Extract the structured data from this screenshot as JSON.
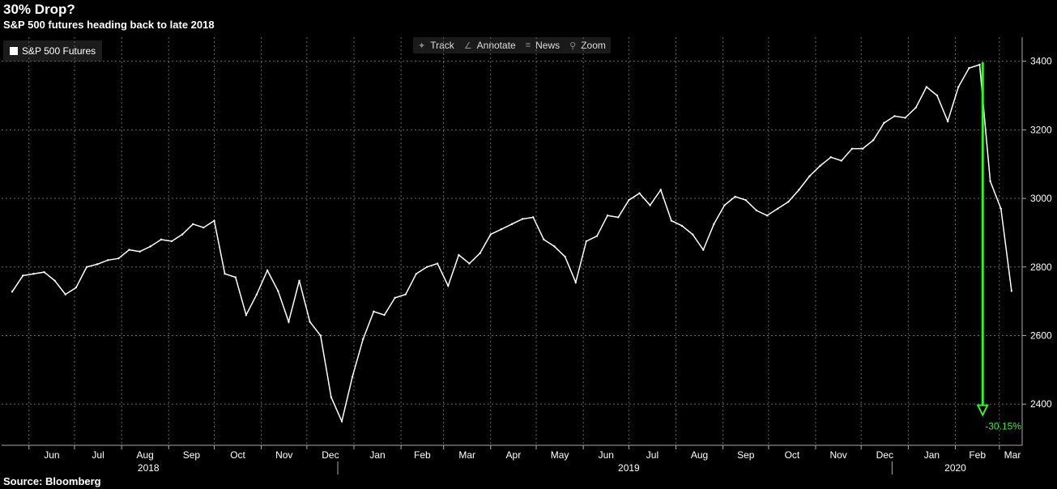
{
  "header": {
    "title": "30% Drop?",
    "subtitle": "S&P 500 futures heading back to late 2018"
  },
  "footer": {
    "source": "Source: Bloomberg"
  },
  "toolbar": {
    "items": [
      {
        "label": "Track",
        "icon": "crosshair-icon"
      },
      {
        "label": "Annotate",
        "icon": "pencil-icon"
      },
      {
        "label": "News",
        "icon": "news-icon"
      },
      {
        "label": "Zoom",
        "icon": "magnifier-icon"
      }
    ]
  },
  "colors": {
    "background": "#000000",
    "series": "#ffffff",
    "annotation": "#33ee33",
    "grid": "#666666"
  },
  "chart_data": {
    "type": "line",
    "title": "30% Drop?",
    "subtitle": "S&P 500 futures heading back to late 2018",
    "series": [
      {
        "name": "S&P 500 Futures",
        "points": [
          [
            "2018-05-21",
            2728
          ],
          [
            "2018-05-28",
            2775
          ],
          [
            "2018-06-04",
            2780
          ],
          [
            "2018-06-11",
            2785
          ],
          [
            "2018-06-18",
            2760
          ],
          [
            "2018-06-25",
            2720
          ],
          [
            "2018-07-02",
            2740
          ],
          [
            "2018-07-09",
            2800
          ],
          [
            "2018-07-16",
            2808
          ],
          [
            "2018-07-23",
            2820
          ],
          [
            "2018-07-30",
            2825
          ],
          [
            "2018-08-06",
            2850
          ],
          [
            "2018-08-13",
            2845
          ],
          [
            "2018-08-20",
            2860
          ],
          [
            "2018-08-27",
            2880
          ],
          [
            "2018-09-03",
            2875
          ],
          [
            "2018-09-10",
            2895
          ],
          [
            "2018-09-17",
            2925
          ],
          [
            "2018-09-24",
            2915
          ],
          [
            "2018-10-01",
            2935
          ],
          [
            "2018-10-08",
            2780
          ],
          [
            "2018-10-15",
            2770
          ],
          [
            "2018-10-22",
            2660
          ],
          [
            "2018-10-29",
            2720
          ],
          [
            "2018-11-05",
            2790
          ],
          [
            "2018-11-12",
            2730
          ],
          [
            "2018-11-19",
            2640
          ],
          [
            "2018-11-26",
            2760
          ],
          [
            "2018-12-03",
            2640
          ],
          [
            "2018-12-10",
            2600
          ],
          [
            "2018-12-17",
            2420
          ],
          [
            "2018-12-24",
            2350
          ],
          [
            "2018-12-31",
            2480
          ],
          [
            "2019-01-07",
            2590
          ],
          [
            "2019-01-14",
            2670
          ],
          [
            "2019-01-21",
            2660
          ],
          [
            "2019-01-28",
            2710
          ],
          [
            "2019-02-04",
            2720
          ],
          [
            "2019-02-11",
            2780
          ],
          [
            "2019-02-18",
            2800
          ],
          [
            "2019-02-25",
            2810
          ],
          [
            "2019-03-04",
            2745
          ],
          [
            "2019-03-11",
            2835
          ],
          [
            "2019-03-18",
            2810
          ],
          [
            "2019-03-25",
            2840
          ],
          [
            "2019-04-01",
            2895
          ],
          [
            "2019-04-08",
            2910
          ],
          [
            "2019-04-15",
            2925
          ],
          [
            "2019-04-22",
            2940
          ],
          [
            "2019-04-29",
            2945
          ],
          [
            "2019-05-06",
            2880
          ],
          [
            "2019-05-13",
            2860
          ],
          [
            "2019-05-20",
            2830
          ],
          [
            "2019-05-27",
            2755
          ],
          [
            "2019-06-03",
            2875
          ],
          [
            "2019-06-10",
            2890
          ],
          [
            "2019-06-17",
            2950
          ],
          [
            "2019-06-24",
            2945
          ],
          [
            "2019-07-01",
            2995
          ],
          [
            "2019-07-08",
            3015
          ],
          [
            "2019-07-15",
            2980
          ],
          [
            "2019-07-22",
            3025
          ],
          [
            "2019-07-29",
            2935
          ],
          [
            "2019-08-05",
            2920
          ],
          [
            "2019-08-12",
            2895
          ],
          [
            "2019-08-19",
            2850
          ],
          [
            "2019-08-26",
            2925
          ],
          [
            "2019-09-02",
            2980
          ],
          [
            "2019-09-09",
            3005
          ],
          [
            "2019-09-16",
            2995
          ],
          [
            "2019-09-23",
            2965
          ],
          [
            "2019-09-30",
            2950
          ],
          [
            "2019-10-07",
            2970
          ],
          [
            "2019-10-14",
            2990
          ],
          [
            "2019-10-21",
            3025
          ],
          [
            "2019-10-28",
            3065
          ],
          [
            "2019-11-04",
            3095
          ],
          [
            "2019-11-11",
            3120
          ],
          [
            "2019-11-18",
            3110
          ],
          [
            "2019-11-25",
            3145
          ],
          [
            "2019-12-02",
            3145
          ],
          [
            "2019-12-09",
            3170
          ],
          [
            "2019-12-16",
            3220
          ],
          [
            "2019-12-23",
            3240
          ],
          [
            "2019-12-30",
            3235
          ],
          [
            "2020-01-06",
            3265
          ],
          [
            "2020-01-13",
            3325
          ],
          [
            "2020-01-20",
            3300
          ],
          [
            "2020-01-27",
            3225
          ],
          [
            "2020-02-03",
            3325
          ],
          [
            "2020-02-10",
            3380
          ],
          [
            "2020-02-17",
            3390
          ],
          [
            "2020-02-24",
            3050
          ],
          [
            "2020-03-02",
            2970
          ],
          [
            "2020-03-09",
            2730
          ]
        ]
      }
    ],
    "y_ticks": [
      2400,
      2600,
      2800,
      3000,
      3200,
      3400
    ],
    "ylim": [
      2280,
      3470
    ],
    "xlim": [
      "2018-05-14",
      "2020-03-16"
    ],
    "x_month_ticks": [
      {
        "date": "2018-06-01",
        "label": "Jun"
      },
      {
        "date": "2018-07-01",
        "label": "Jul"
      },
      {
        "date": "2018-08-01",
        "label": "Aug"
      },
      {
        "date": "2018-09-01",
        "label": "Sep"
      },
      {
        "date": "2018-10-01",
        "label": "Oct"
      },
      {
        "date": "2018-11-01",
        "label": "Nov"
      },
      {
        "date": "2018-12-01",
        "label": "Dec"
      },
      {
        "date": "2019-01-01",
        "label": "Jan"
      },
      {
        "date": "2019-02-01",
        "label": "Feb"
      },
      {
        "date": "2019-03-01",
        "label": "Mar"
      },
      {
        "date": "2019-04-01",
        "label": "Apr"
      },
      {
        "date": "2019-05-01",
        "label": "May"
      },
      {
        "date": "2019-06-01",
        "label": "Jun"
      },
      {
        "date": "2019-07-01",
        "label": "Jul"
      },
      {
        "date": "2019-08-01",
        "label": "Aug"
      },
      {
        "date": "2019-09-01",
        "label": "Sep"
      },
      {
        "date": "2019-10-01",
        "label": "Oct"
      },
      {
        "date": "2019-11-01",
        "label": "Nov"
      },
      {
        "date": "2019-12-01",
        "label": "Dec"
      },
      {
        "date": "2020-01-01",
        "label": "Jan"
      },
      {
        "date": "2020-02-01",
        "label": "Feb"
      },
      {
        "date": "2020-03-01",
        "label": "Mar"
      }
    ],
    "x_year_labels": [
      {
        "date": "2018-09-01",
        "label": "2018"
      },
      {
        "date": "2019-07-01",
        "label": "2019"
      },
      {
        "date": "2020-02-01",
        "label": "2020"
      }
    ],
    "x_year_dividers": [
      "2019-01-01",
      "2020-01-01"
    ],
    "annotation": {
      "label": "-30.15%",
      "date": "2020-02-19",
      "from_value": 3397,
      "to_value": 2373
    },
    "grid": true,
    "legend": {
      "position": "top-left",
      "entries": [
        "S&P 500 Futures"
      ]
    }
  }
}
